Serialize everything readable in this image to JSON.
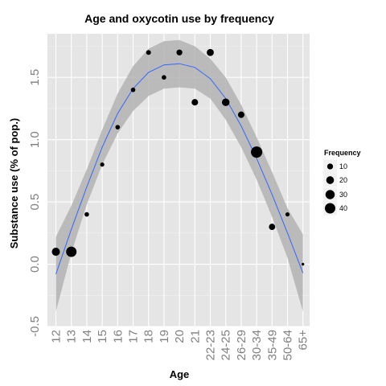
{
  "chart_data": {
    "type": "scatter",
    "title": "Age and oxycotin use by frequency",
    "xlabel": "Age",
    "ylabel": "Substance use (% of pop.)",
    "categories": [
      "12",
      "13",
      "14",
      "15",
      "16",
      "17",
      "18",
      "19",
      "20",
      "21",
      "22-23",
      "24-25",
      "26-29",
      "30-34",
      "35-49",
      "50-64",
      "65+"
    ],
    "values": [
      0.1,
      0.1,
      0.4,
      0.8,
      1.1,
      1.4,
      1.7,
      1.5,
      1.7,
      1.3,
      1.7,
      1.3,
      1.2,
      0.9,
      0.3,
      0.4,
      0.0
    ],
    "frequency": [
      22,
      40,
      5,
      4,
      5,
      5,
      6,
      5,
      10,
      13,
      16,
      19,
      13,
      48,
      12,
      4,
      1
    ],
    "smooth": {
      "fit": [
        -0.08,
        0.28,
        0.62,
        0.94,
        1.21,
        1.41,
        1.54,
        1.6,
        1.61,
        1.58,
        1.49,
        1.33,
        1.11,
        0.85,
        0.56,
        0.25,
        -0.07
      ],
      "upper": [
        0.22,
        0.47,
        0.76,
        1.08,
        1.37,
        1.59,
        1.73,
        1.79,
        1.8,
        1.75,
        1.65,
        1.5,
        1.28,
        1.02,
        0.74,
        0.45,
        0.24
      ],
      "lower": [
        -0.38,
        0.09,
        0.48,
        0.8,
        1.05,
        1.23,
        1.35,
        1.41,
        1.42,
        1.41,
        1.33,
        1.16,
        0.94,
        0.68,
        0.38,
        0.05,
        -0.38
      ],
      "line_color": "#3366ff",
      "band_color": "#b3b3b3"
    },
    "ylim": [
      -0.5,
      1.85
    ],
    "yticks": [
      -0.5,
      0.0,
      0.5,
      1.0,
      1.5
    ],
    "ytick_labels": [
      "-0.5",
      "0.0",
      "0.5",
      "1.0",
      "1.5"
    ],
    "grid": true,
    "legend": {
      "title": "Frequency",
      "position": "right",
      "entries": [
        {
          "label": "10",
          "value": 10
        },
        {
          "label": "20",
          "value": 20
        },
        {
          "label": "30",
          "value": 30
        },
        {
          "label": "40",
          "value": 40
        }
      ]
    },
    "colors": {
      "panel": "#e5e5e5",
      "grid_major": "#ffffff",
      "grid_minor": "#f2f2f2",
      "point": "#000000",
      "tick_label": "#7f7f7f"
    }
  }
}
